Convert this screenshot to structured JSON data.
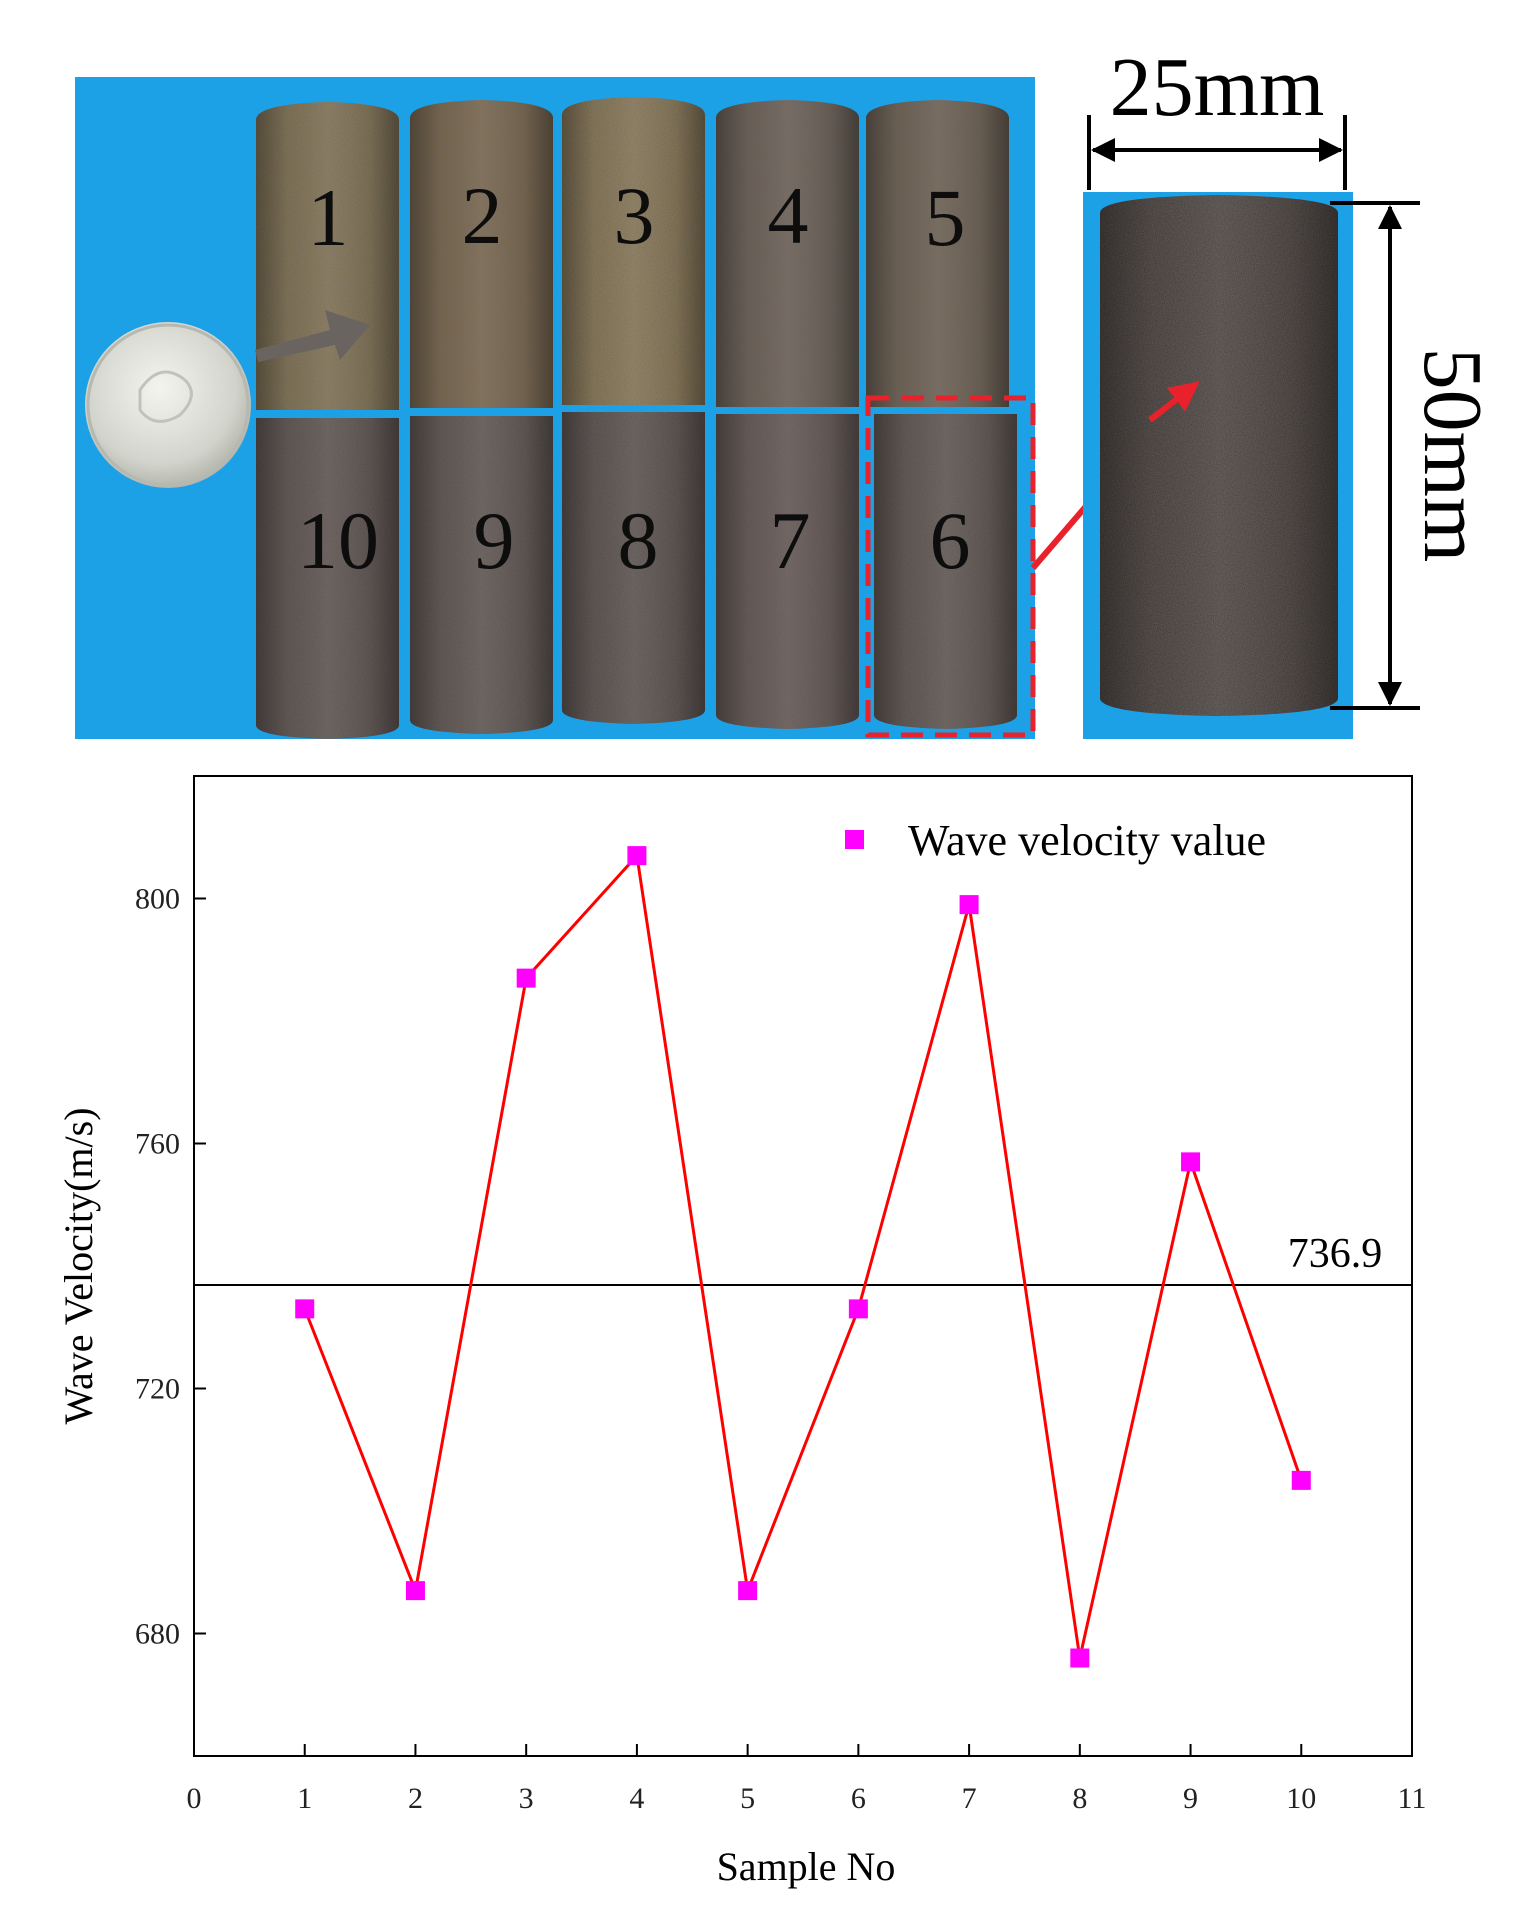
{
  "photo": {
    "background_color": "#1da1e6",
    "sample_labels_top": [
      "1",
      "2",
      "3",
      "4",
      "5"
    ],
    "sample_labels_bottom": [
      "10",
      "9",
      "8",
      "7",
      "6"
    ],
    "width_label": "25mm",
    "height_label": "50mm",
    "highlight_color": "#e8212b"
  },
  "chart_data": {
    "type": "line",
    "xlabel": "Sample No",
    "ylabel": "Wave Velocity(m/s)",
    "xlim": [
      0,
      11
    ],
    "ylim": [
      660,
      820
    ],
    "x_ticks": [
      0,
      1,
      2,
      3,
      4,
      5,
      6,
      7,
      8,
      9,
      10,
      11
    ],
    "y_ticks": [
      680,
      720,
      760,
      800
    ],
    "series": [
      {
        "name": "Wave velocity value",
        "x": [
          1,
          2,
          3,
          4,
          5,
          6,
          7,
          8,
          9,
          10
        ],
        "values": [
          733,
          687,
          787,
          807,
          687,
          733,
          799,
          676,
          757,
          705
        ],
        "line_color": "#ff0000",
        "marker_color": "#ff00ff",
        "marker": "square"
      }
    ],
    "reference_line": {
      "value": 736.9,
      "label": "736.9",
      "color": "#000000"
    },
    "legend_position": "top-right",
    "grid": false
  }
}
